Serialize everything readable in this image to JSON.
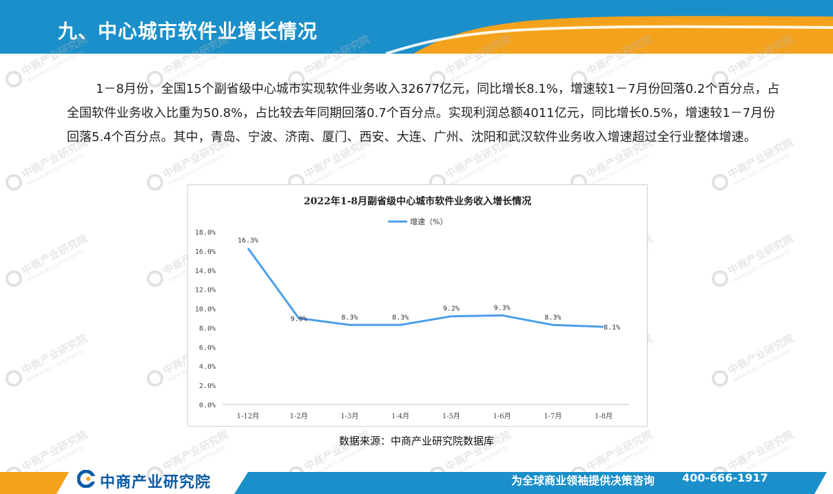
{
  "header": {
    "title": "九、中心城市软件业增长情况"
  },
  "body_text": "1－8月份，全国15个副省级中心城市实现软件业务收入32677亿元，同比增长8.1%，增速较1－7月份回落0.2个百分点，占全国软件业务收入比重为50.8%，占比较去年同期回落0.7个百分点。实现利润总额4011亿元，同比增长0.5%，增速较1－7月份回落5.4个百分点。其中，青岛、宁波、济南、厦门、西安、大连、广州、沈阳和武汉软件业务收入增速超过全行业整体增速。",
  "chart_data": {
    "type": "line",
    "title": "2022年1-8月副省级中心城市软件业务收入增长情况",
    "categories": [
      "1-12月",
      "1-2月",
      "1-3月",
      "1-4月",
      "1-5月",
      "1-6月",
      "1-7月",
      "1-8月"
    ],
    "series": [
      {
        "name": "增速（%）",
        "values": [
          16.3,
          9.0,
          8.3,
          8.3,
          9.2,
          9.3,
          8.3,
          8.1
        ],
        "color": "#4a9ee8"
      }
    ],
    "data_labels": [
      "16.3%",
      "9.0%",
      "8.3%",
      "8.3%",
      "9.2%",
      "9.3%",
      "8.3%",
      "8.1%"
    ],
    "yticks": [
      "0.0%",
      "2.0%",
      "4.0%",
      "6.0%",
      "8.0%",
      "10.0%",
      "12.0%",
      "14.0%",
      "16.0%",
      "18.0%"
    ],
    "ylim": [
      0,
      18
    ],
    "legend_position": "top-center",
    "grid": false
  },
  "source_note": "数据来源：中商产业研究院数据库",
  "footer": {
    "logo_text": "中商产业研究院",
    "slogan": "为全球商业领袖提供决策咨询",
    "phone": "400-666-1917"
  },
  "watermark": {
    "text": "中商产业研究院",
    "url_text": "www.askci.com/reports"
  },
  "colors": {
    "header_blue": "#1a8fc9",
    "header_orange": "#f4a21c",
    "footer_blue": "#1a8fc9",
    "footer_orange": "#f4a21c",
    "line": "#4a9ee8"
  }
}
